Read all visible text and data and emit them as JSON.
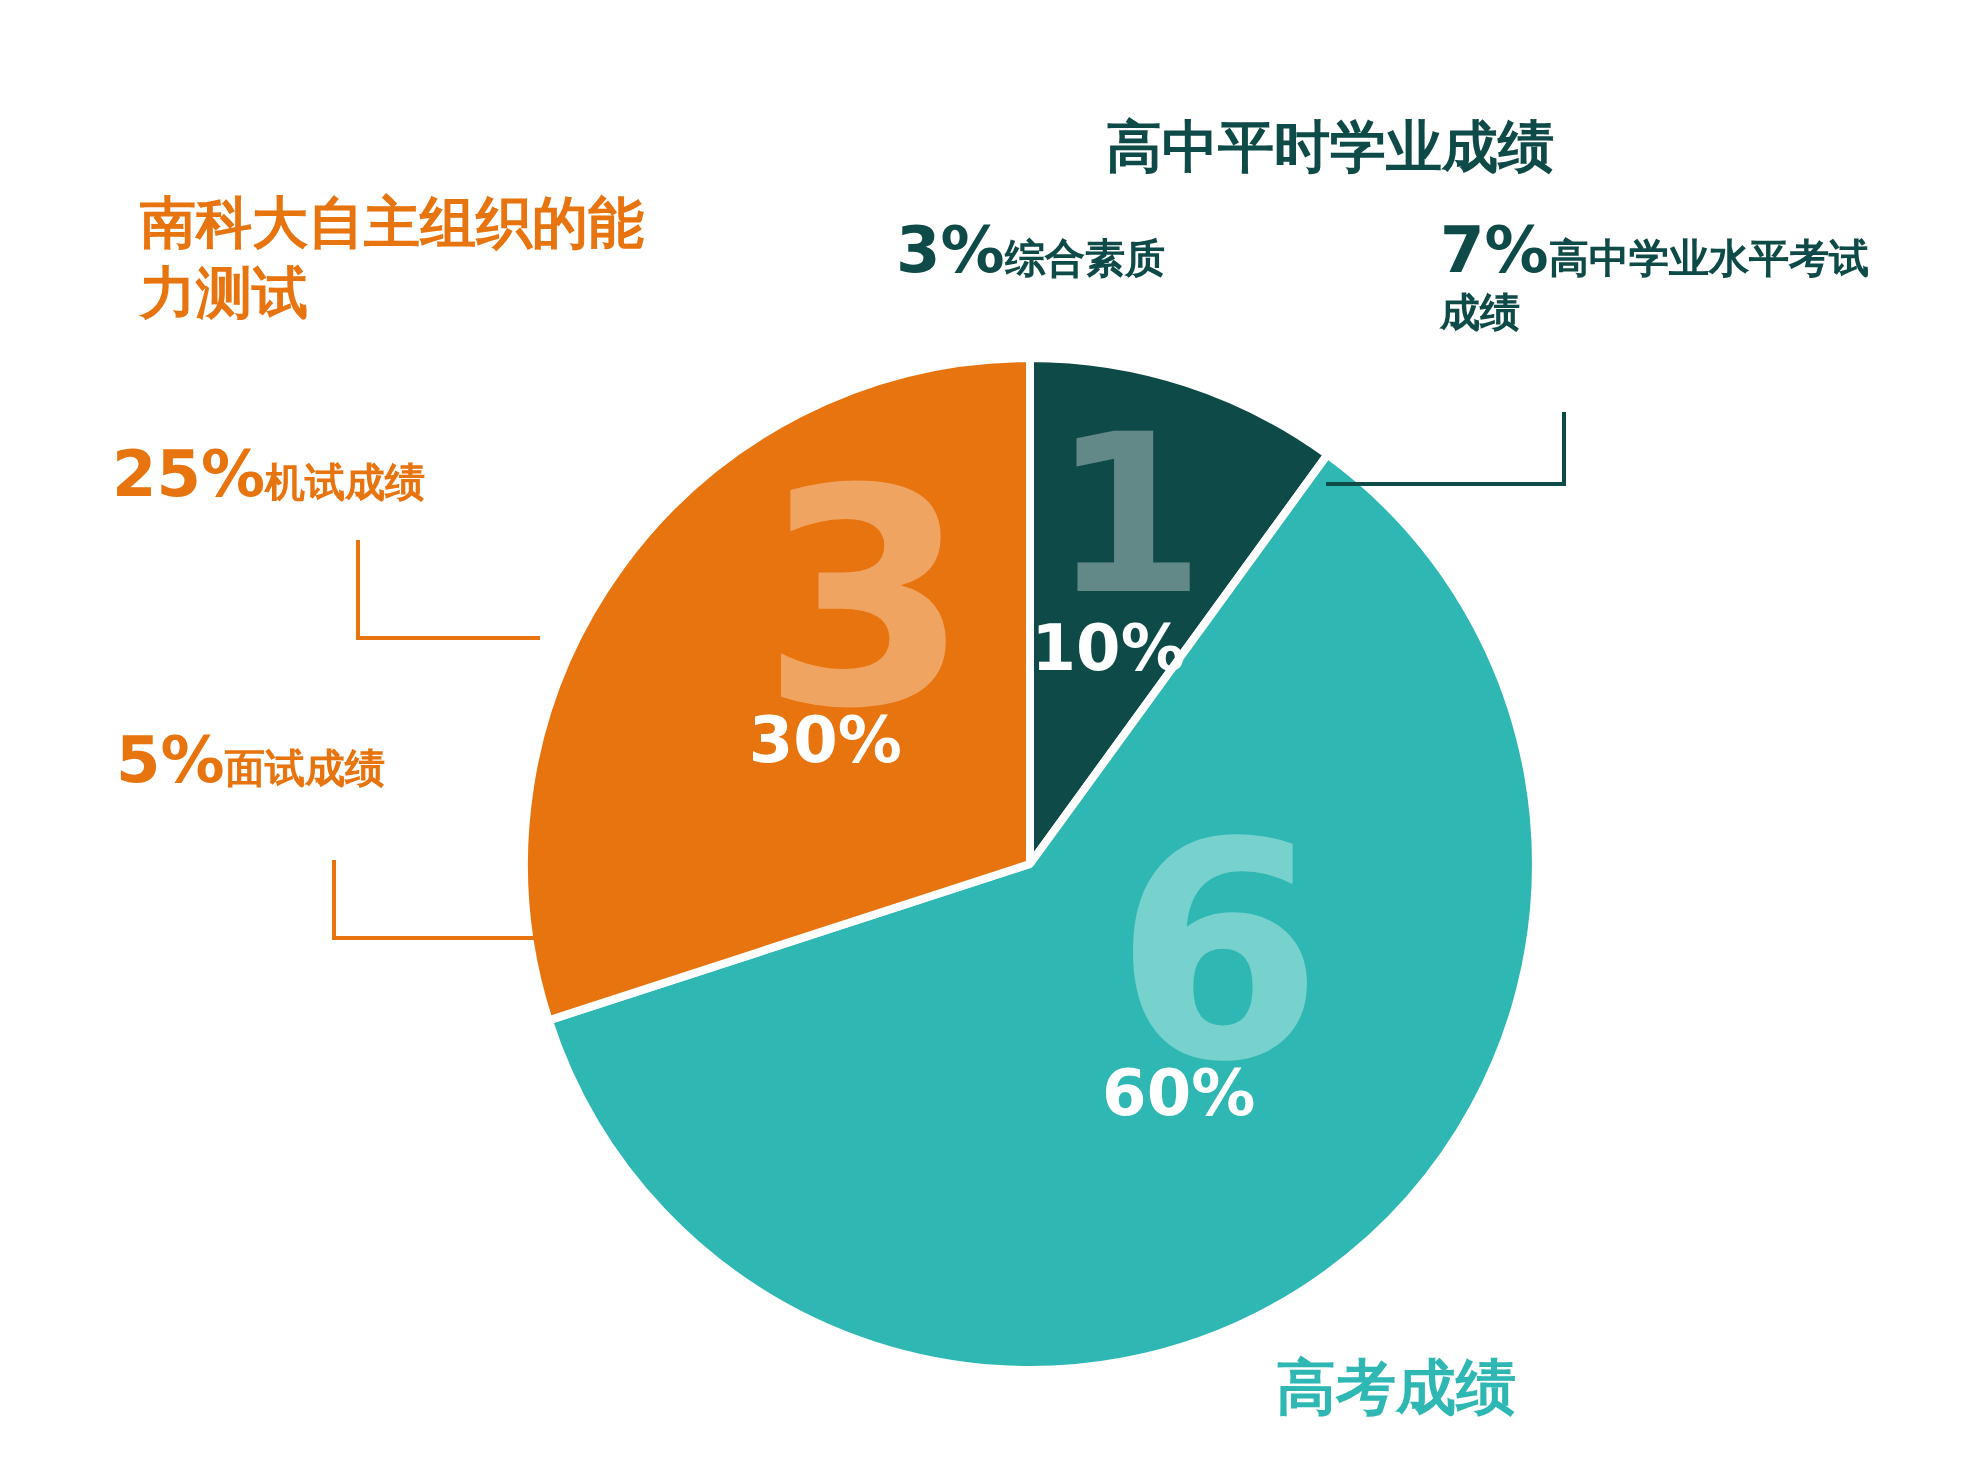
{
  "chart_data": {
    "type": "pie",
    "categories": [
      "高中平时学业成绩",
      "高考成绩",
      "南科大自主组织的能力测试"
    ],
    "values": [
      10,
      60,
      30
    ],
    "colors": [
      "#0e4a47",
      "#2fb8b3",
      "#e8740f"
    ],
    "value_labels": [
      "10%",
      "60%",
      "30%"
    ],
    "legend": false,
    "annotations": [
      "1",
      "6",
      "3",
      "3%综合素质",
      "7%高中学业水平考试成绩",
      "25%机试成绩",
      "5%面试成绩"
    ]
  }
}
